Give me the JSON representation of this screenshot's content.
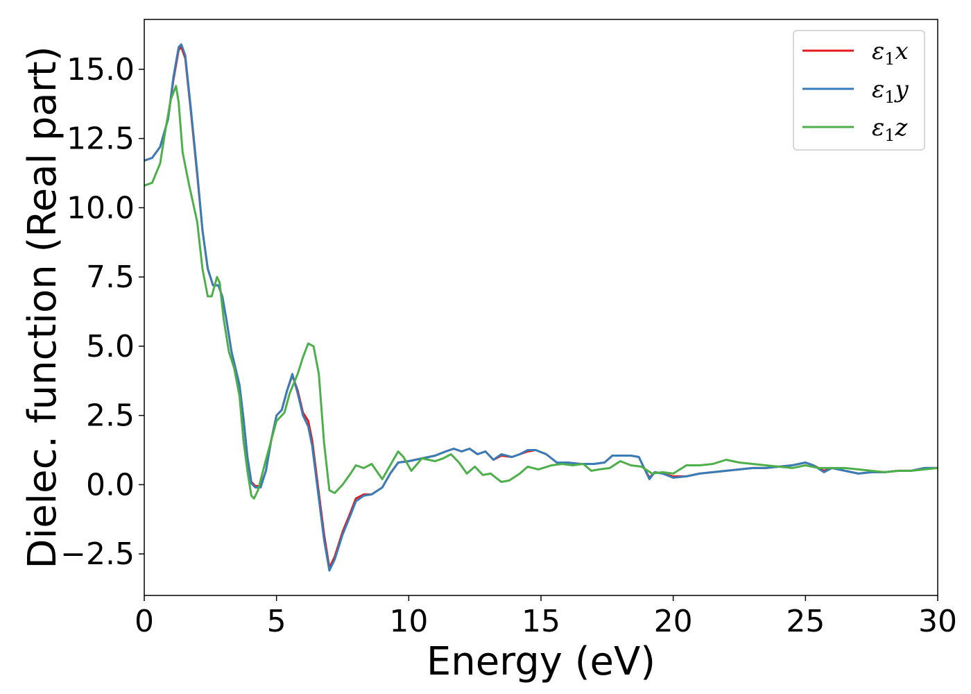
{
  "chart_data": {
    "type": "line",
    "title": "",
    "xlabel": "Energy (eV)",
    "ylabel": "Dielec. function (Real part)",
    "xlim": [
      0,
      30
    ],
    "ylim": [
      -4.0,
      16.8
    ],
    "xticks": [
      0,
      5,
      10,
      15,
      20,
      25,
      30
    ],
    "xtick_labels": [
      "0",
      "5",
      "10",
      "15",
      "20",
      "25",
      "30"
    ],
    "yticks": [
      -2.5,
      0.0,
      2.5,
      5.0,
      7.5,
      10.0,
      12.5,
      15.0
    ],
    "ytick_labels": [
      "−2.5",
      "0.0",
      "2.5",
      "5.0",
      "7.5",
      "10.0",
      "12.5",
      "15.0"
    ],
    "grid": false,
    "legend_position": "top-right",
    "series": [
      {
        "name": "ε₁x",
        "legend_base": "ε",
        "legend_sub": "1",
        "legend_var": "x",
        "color": "#e41a1c",
        "points": [
          [
            0,
            11.7
          ],
          [
            0.3,
            11.8
          ],
          [
            0.6,
            12.2
          ],
          [
            0.9,
            13.2
          ],
          [
            1.1,
            14.6
          ],
          [
            1.3,
            15.7
          ],
          [
            1.4,
            15.8
          ],
          [
            1.55,
            15.4
          ],
          [
            1.75,
            13.6
          ],
          [
            2.0,
            11.2
          ],
          [
            2.2,
            9.2
          ],
          [
            2.4,
            7.8
          ],
          [
            2.6,
            7.2
          ],
          [
            2.8,
            7.2
          ],
          [
            2.95,
            6.8
          ],
          [
            3.1,
            6.0
          ],
          [
            3.3,
            4.8
          ],
          [
            3.5,
            4.0
          ],
          [
            3.6,
            3.6
          ],
          [
            3.75,
            2.4
          ],
          [
            3.9,
            1.0
          ],
          [
            4.05,
            0.1
          ],
          [
            4.2,
            -0.05
          ],
          [
            4.4,
            -0.05
          ],
          [
            4.6,
            0.5
          ],
          [
            4.8,
            1.6
          ],
          [
            5.0,
            2.5
          ],
          [
            5.2,
            2.7
          ],
          [
            5.4,
            3.4
          ],
          [
            5.6,
            3.95
          ],
          [
            5.8,
            3.4
          ],
          [
            6.0,
            2.6
          ],
          [
            6.2,
            2.3
          ],
          [
            6.35,
            1.6
          ],
          [
            6.6,
            -0.3
          ],
          [
            6.8,
            -1.8
          ],
          [
            7.0,
            -3.0
          ],
          [
            7.2,
            -2.6
          ],
          [
            7.5,
            -1.7
          ],
          [
            7.8,
            -1.0
          ],
          [
            8.0,
            -0.5
          ],
          [
            8.3,
            -0.35
          ],
          [
            8.6,
            -0.35
          ],
          [
            9.0,
            -0.1
          ],
          [
            9.3,
            0.4
          ],
          [
            9.6,
            0.8
          ],
          [
            10.0,
            0.85
          ],
          [
            10.5,
            0.95
          ],
          [
            11.0,
            1.05
          ],
          [
            11.4,
            1.2
          ],
          [
            11.7,
            1.3
          ],
          [
            12.0,
            1.2
          ],
          [
            12.3,
            1.3
          ],
          [
            12.6,
            1.1
          ],
          [
            12.9,
            1.2
          ],
          [
            13.2,
            0.9
          ],
          [
            13.5,
            1.05
          ],
          [
            13.9,
            1.0
          ],
          [
            14.2,
            1.1
          ],
          [
            14.5,
            1.2
          ],
          [
            14.8,
            1.25
          ],
          [
            15.2,
            1.1
          ],
          [
            15.6,
            0.8
          ],
          [
            16.0,
            0.8
          ],
          [
            16.5,
            0.75
          ],
          [
            17.0,
            0.75
          ],
          [
            17.4,
            0.8
          ],
          [
            17.7,
            1.05
          ],
          [
            18.0,
            1.05
          ],
          [
            18.4,
            1.05
          ],
          [
            18.7,
            1.0
          ],
          [
            18.9,
            0.6
          ],
          [
            19.1,
            0.25
          ],
          [
            19.3,
            0.45
          ],
          [
            19.6,
            0.4
          ],
          [
            20.0,
            0.3
          ],
          [
            20.5,
            0.3
          ],
          [
            21.0,
            0.4
          ],
          [
            21.5,
            0.45
          ],
          [
            22.0,
            0.5
          ],
          [
            22.5,
            0.55
          ],
          [
            23.0,
            0.6
          ],
          [
            23.5,
            0.6
          ],
          [
            24.0,
            0.65
          ],
          [
            24.5,
            0.7
          ],
          [
            25.0,
            0.8
          ],
          [
            25.3,
            0.7
          ],
          [
            25.7,
            0.5
          ],
          [
            26.0,
            0.6
          ],
          [
            26.5,
            0.5
          ],
          [
            27.0,
            0.4
          ],
          [
            27.5,
            0.45
          ],
          [
            28.0,
            0.45
          ],
          [
            28.5,
            0.5
          ],
          [
            29.0,
            0.5
          ],
          [
            29.5,
            0.6
          ],
          [
            30.0,
            0.6
          ]
        ]
      },
      {
        "name": "ε₁y",
        "legend_base": "ε",
        "legend_sub": "1",
        "legend_var": "y",
        "color": "#377eb8",
        "points": [
          [
            0,
            11.7
          ],
          [
            0.3,
            11.8
          ],
          [
            0.6,
            12.2
          ],
          [
            0.9,
            13.2
          ],
          [
            1.1,
            14.7
          ],
          [
            1.3,
            15.8
          ],
          [
            1.4,
            15.9
          ],
          [
            1.55,
            15.5
          ],
          [
            1.75,
            13.7
          ],
          [
            2.0,
            11.3
          ],
          [
            2.2,
            9.2
          ],
          [
            2.4,
            7.8
          ],
          [
            2.6,
            7.2
          ],
          [
            2.8,
            7.2
          ],
          [
            2.95,
            6.8
          ],
          [
            3.1,
            6.0
          ],
          [
            3.3,
            4.8
          ],
          [
            3.5,
            4.0
          ],
          [
            3.6,
            3.6
          ],
          [
            3.75,
            2.4
          ],
          [
            3.9,
            1.0
          ],
          [
            4.05,
            0.05
          ],
          [
            4.2,
            -0.1
          ],
          [
            4.4,
            -0.1
          ],
          [
            4.6,
            0.5
          ],
          [
            4.8,
            1.6
          ],
          [
            5.0,
            2.5
          ],
          [
            5.2,
            2.7
          ],
          [
            5.4,
            3.4
          ],
          [
            5.6,
            4.0
          ],
          [
            5.8,
            3.3
          ],
          [
            6.0,
            2.5
          ],
          [
            6.2,
            2.1
          ],
          [
            6.35,
            1.4
          ],
          [
            6.6,
            -0.5
          ],
          [
            6.8,
            -2.0
          ],
          [
            7.0,
            -3.1
          ],
          [
            7.2,
            -2.7
          ],
          [
            7.5,
            -1.8
          ],
          [
            7.8,
            -1.1
          ],
          [
            8.0,
            -0.6
          ],
          [
            8.3,
            -0.4
          ],
          [
            8.6,
            -0.35
          ],
          [
            9.0,
            -0.1
          ],
          [
            9.3,
            0.4
          ],
          [
            9.6,
            0.8
          ],
          [
            10.0,
            0.85
          ],
          [
            10.5,
            0.95
          ],
          [
            11.0,
            1.05
          ],
          [
            11.4,
            1.2
          ],
          [
            11.7,
            1.3
          ],
          [
            12.0,
            1.2
          ],
          [
            12.3,
            1.3
          ],
          [
            12.6,
            1.1
          ],
          [
            12.9,
            1.2
          ],
          [
            13.2,
            0.9
          ],
          [
            13.5,
            1.1
          ],
          [
            13.9,
            1.0
          ],
          [
            14.2,
            1.1
          ],
          [
            14.5,
            1.25
          ],
          [
            14.8,
            1.25
          ],
          [
            15.2,
            1.1
          ],
          [
            15.6,
            0.8
          ],
          [
            16.0,
            0.8
          ],
          [
            16.5,
            0.75
          ],
          [
            17.0,
            0.75
          ],
          [
            17.4,
            0.8
          ],
          [
            17.7,
            1.05
          ],
          [
            18.0,
            1.05
          ],
          [
            18.4,
            1.05
          ],
          [
            18.7,
            1.0
          ],
          [
            18.9,
            0.6
          ],
          [
            19.1,
            0.2
          ],
          [
            19.3,
            0.45
          ],
          [
            19.6,
            0.4
          ],
          [
            20.0,
            0.25
          ],
          [
            20.5,
            0.3
          ],
          [
            21.0,
            0.4
          ],
          [
            21.5,
            0.45
          ],
          [
            22.0,
            0.5
          ],
          [
            22.5,
            0.55
          ],
          [
            23.0,
            0.6
          ],
          [
            23.5,
            0.6
          ],
          [
            24.0,
            0.65
          ],
          [
            24.5,
            0.7
          ],
          [
            25.0,
            0.8
          ],
          [
            25.3,
            0.7
          ],
          [
            25.7,
            0.45
          ],
          [
            26.0,
            0.6
          ],
          [
            26.5,
            0.5
          ],
          [
            27.0,
            0.4
          ],
          [
            27.5,
            0.45
          ],
          [
            28.0,
            0.45
          ],
          [
            28.5,
            0.5
          ],
          [
            29.0,
            0.5
          ],
          [
            29.5,
            0.6
          ],
          [
            30.0,
            0.6
          ]
        ]
      },
      {
        "name": "ε₁z",
        "legend_base": "ε",
        "legend_sub": "1",
        "legend_var": "z",
        "color": "#4daf4a",
        "points": [
          [
            0,
            10.8
          ],
          [
            0.3,
            10.9
          ],
          [
            0.6,
            11.6
          ],
          [
            0.8,
            12.8
          ],
          [
            1.0,
            13.9
          ],
          [
            1.2,
            14.4
          ],
          [
            1.3,
            13.8
          ],
          [
            1.45,
            12.0
          ],
          [
            1.7,
            10.8
          ],
          [
            2.0,
            9.5
          ],
          [
            2.2,
            7.8
          ],
          [
            2.4,
            6.8
          ],
          [
            2.55,
            6.8
          ],
          [
            2.75,
            7.5
          ],
          [
            2.85,
            7.3
          ],
          [
            3.0,
            6.0
          ],
          [
            3.2,
            4.8
          ],
          [
            3.4,
            4.2
          ],
          [
            3.6,
            3.2
          ],
          [
            3.75,
            1.6
          ],
          [
            3.9,
            0.5
          ],
          [
            4.05,
            -0.4
          ],
          [
            4.15,
            -0.5
          ],
          [
            4.3,
            -0.2
          ],
          [
            4.6,
            0.9
          ],
          [
            5.0,
            2.3
          ],
          [
            5.3,
            2.6
          ],
          [
            5.5,
            3.3
          ],
          [
            5.8,
            4.0
          ],
          [
            6.0,
            4.6
          ],
          [
            6.2,
            5.1
          ],
          [
            6.4,
            5.0
          ],
          [
            6.6,
            4.0
          ],
          [
            6.8,
            1.5
          ],
          [
            7.0,
            -0.2
          ],
          [
            7.2,
            -0.3
          ],
          [
            7.5,
            0.0
          ],
          [
            7.8,
            0.4
          ],
          [
            8.0,
            0.7
          ],
          [
            8.3,
            0.6
          ],
          [
            8.6,
            0.75
          ],
          [
            9.0,
            0.2
          ],
          [
            9.3,
            0.7
          ],
          [
            9.6,
            1.2
          ],
          [
            9.8,
            1.0
          ],
          [
            10.1,
            0.5
          ],
          [
            10.5,
            0.95
          ],
          [
            11.0,
            0.85
          ],
          [
            11.3,
            0.95
          ],
          [
            11.6,
            1.1
          ],
          [
            11.9,
            0.8
          ],
          [
            12.2,
            0.4
          ],
          [
            12.5,
            0.65
          ],
          [
            12.8,
            0.35
          ],
          [
            13.1,
            0.4
          ],
          [
            13.5,
            0.1
          ],
          [
            13.8,
            0.15
          ],
          [
            14.2,
            0.4
          ],
          [
            14.5,
            0.65
          ],
          [
            14.9,
            0.55
          ],
          [
            15.4,
            0.7
          ],
          [
            15.8,
            0.75
          ],
          [
            16.2,
            0.7
          ],
          [
            16.6,
            0.75
          ],
          [
            16.9,
            0.5
          ],
          [
            17.2,
            0.55
          ],
          [
            17.6,
            0.6
          ],
          [
            18.0,
            0.85
          ],
          [
            18.4,
            0.7
          ],
          [
            18.8,
            0.65
          ],
          [
            19.2,
            0.4
          ],
          [
            19.6,
            0.45
          ],
          [
            20.0,
            0.4
          ],
          [
            20.5,
            0.7
          ],
          [
            21.0,
            0.7
          ],
          [
            21.5,
            0.75
          ],
          [
            22.0,
            0.9
          ],
          [
            22.5,
            0.8
          ],
          [
            23.0,
            0.75
          ],
          [
            23.5,
            0.7
          ],
          [
            24.0,
            0.65
          ],
          [
            24.5,
            0.6
          ],
          [
            25.0,
            0.7
          ],
          [
            25.5,
            0.6
          ],
          [
            26.0,
            0.6
          ],
          [
            26.5,
            0.6
          ],
          [
            27.0,
            0.55
          ],
          [
            27.5,
            0.5
          ],
          [
            28.0,
            0.45
          ],
          [
            28.5,
            0.5
          ],
          [
            29.0,
            0.5
          ],
          [
            29.5,
            0.55
          ],
          [
            30.0,
            0.6
          ]
        ]
      }
    ]
  }
}
